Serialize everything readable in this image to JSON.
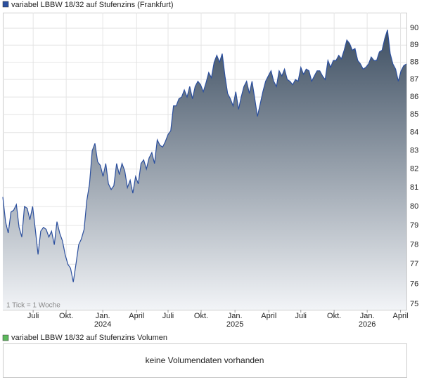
{
  "chart_data": {
    "type": "area",
    "title": "variabel LBBW 18/32 auf Stufenzins (Frankfurt)",
    "note": "1 Tick = 1 Woche",
    "color": "#2b4f9e",
    "log_scale": true,
    "grid": true,
    "ylim": [
      74.72,
      90.93
    ],
    "yticks": [
      75,
      76,
      77,
      78,
      79,
      80,
      81,
      82,
      83,
      84,
      85,
      86,
      87,
      88,
      89,
      90
    ],
    "xlim": [
      0,
      149
    ],
    "xticks": [
      {
        "value": 11.2,
        "label": "Juli"
      },
      {
        "value": 23.4,
        "label": "Okt."
      },
      {
        "value": 36.9,
        "label": "Jan.",
        "year": "2024"
      },
      {
        "value": 49.4,
        "label": "April"
      },
      {
        "value": 61,
        "label": "Juli"
      },
      {
        "value": 73.2,
        "label": "Okt."
      },
      {
        "value": 85.7,
        "label": "Jan.",
        "year": "2025"
      },
      {
        "value": 98.2,
        "label": "April"
      },
      {
        "value": 110,
        "label": "Juli"
      },
      {
        "value": 122.3,
        "label": "Okt."
      },
      {
        "value": 134.5,
        "label": "Jan.",
        "year": "2026"
      },
      {
        "value": 146.8,
        "label": "April"
      }
    ],
    "values": [
      80.5,
      79.2,
      78.6,
      79.7,
      79.8,
      80.1,
      78.9,
      78.4,
      80.0,
      79.9,
      79.3,
      80.0,
      78.8,
      77.5,
      78.7,
      78.9,
      78.8,
      78.4,
      78.7,
      78.0,
      79.2,
      78.6,
      78.2,
      77.5,
      77.0,
      76.8,
      76.1,
      77.0,
      78.0,
      78.3,
      78.8,
      80.3,
      81.2,
      83.0,
      83.4,
      82.4,
      82.2,
      81.6,
      82.3,
      81.2,
      80.9,
      81.1,
      82.3,
      81.7,
      82.3,
      81.9,
      81.0,
      81.4,
      80.7,
      81.6,
      81.2,
      82.3,
      82.5,
      82.0,
      82.6,
      82.9,
      82.3,
      83.6,
      83.3,
      83.2,
      83.5,
      83.9,
      84.1,
      85.5,
      85.5,
      85.9,
      86.0,
      86.4,
      86.0,
      86.6,
      85.9,
      86.6,
      86.9,
      86.7,
      86.3,
      86.8,
      87.4,
      87.1,
      88.0,
      88.4,
      88.0,
      88.5,
      87.2,
      86.2,
      85.9,
      85.5,
      86.3,
      85.3,
      86.0,
      86.6,
      86.9,
      86.2,
      86.9,
      85.9,
      84.9,
      85.6,
      86.3,
      86.9,
      87.2,
      87.5,
      86.9,
      86.6,
      87.5,
      87.2,
      87.6,
      87.0,
      86.9,
      86.7,
      87.0,
      86.9,
      87.7,
      87.3,
      87.6,
      87.5,
      86.9,
      87.2,
      87.5,
      87.5,
      87.2,
      87.0,
      88.1,
      87.7,
      88.1,
      88.1,
      88.4,
      88.2,
      88.7,
      89.3,
      89.1,
      88.7,
      88.8,
      88.1,
      87.9,
      87.6,
      87.7,
      87.9,
      88.3,
      88.1,
      88.1,
      88.6,
      88.7,
      89.4,
      89.9,
      88.5,
      87.9,
      87.6,
      86.9,
      87.5,
      87.8,
      87.9
    ],
    "volume": {
      "title": "variabel LBBW 18/32 auf Stufenzins Volumen",
      "color": "#5cb85c",
      "message": "keine Volumendaten vorhanden"
    }
  }
}
